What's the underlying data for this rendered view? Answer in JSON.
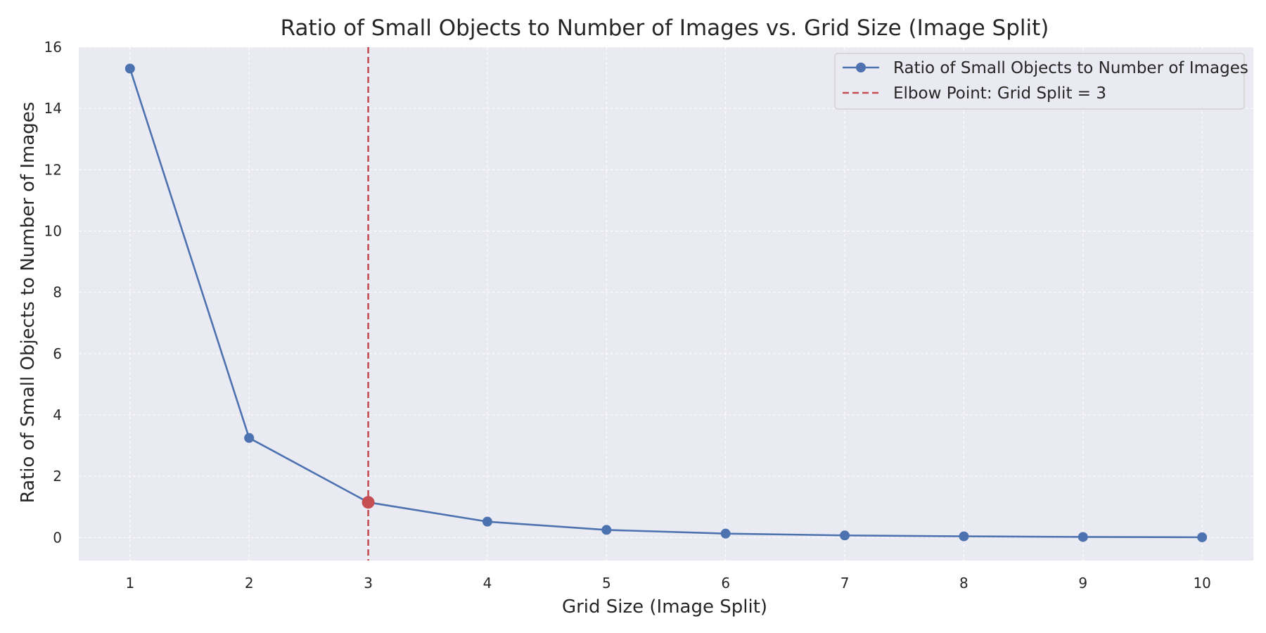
{
  "chart_data": {
    "type": "line",
    "title": "Ratio of Small Objects to Number of Images vs. Grid Size (Image Split)",
    "xlabel": "Grid Size (Image Split)",
    "ylabel": "Ratio of Small Objects to Number of Images",
    "x": [
      1,
      2,
      3,
      4,
      5,
      6,
      7,
      8,
      9,
      10
    ],
    "xticks": [
      "1",
      "2",
      "3",
      "4",
      "5",
      "6",
      "7",
      "8",
      "9",
      "10"
    ],
    "yticks": [
      "0",
      "2",
      "4",
      "6",
      "8",
      "10",
      "12",
      "14",
      "16"
    ],
    "xlim": [
      0.57,
      10.43
    ],
    "ylim": [
      -0.75,
      16
    ],
    "grid": true,
    "legend_position": "top-right",
    "series": [
      {
        "name": "Ratio of Small Objects to Number of Images",
        "values": [
          15.3,
          3.25,
          1.15,
          0.52,
          0.25,
          0.13,
          0.07,
          0.04,
          0.02,
          0.01
        ],
        "color": "#4c72b0",
        "marker": "circle"
      }
    ],
    "annotations": [
      {
        "type": "vertical-line",
        "name": "Elbow Point: Grid Split = 3",
        "x": 3,
        "color": "#c44e52",
        "style": "dashed",
        "highlight_point": {
          "x": 3,
          "y": 1.15
        }
      }
    ]
  },
  "colors": {
    "plot_background": "#eaeaf2",
    "grid": "#ffffff",
    "series": "#4c72b0",
    "elbow": "#c44e52"
  }
}
